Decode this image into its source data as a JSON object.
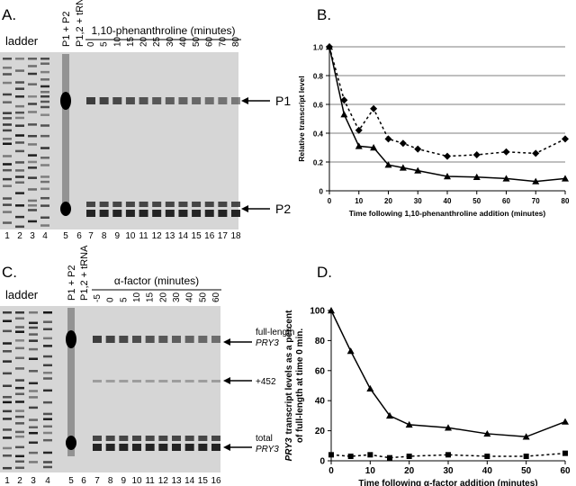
{
  "panels": {
    "a": {
      "label": "A.",
      "ladder": "ladder",
      "lane5": "P1 + P2",
      "lane6": "P1,2 + tRNA",
      "title": "1,10-phenanthroline (minutes)",
      "times": [
        "0",
        "5",
        "10",
        "15",
        "20",
        "25",
        "30",
        "40",
        "50",
        "60",
        "70",
        "80"
      ],
      "lanes": [
        1,
        2,
        3,
        4,
        5,
        6,
        7,
        8,
        9,
        10,
        11,
        12,
        13,
        14,
        15,
        16,
        17,
        18
      ],
      "band1": "P1",
      "band2": "P2"
    },
    "c": {
      "label": "C.",
      "ladder": "ladder",
      "lane5": "P1 + P2",
      "lane6": "P1,2 + tRNA",
      "title": "α-factor (minutes)",
      "times": [
        "-5",
        "0",
        "5",
        "10",
        "15",
        "20",
        "30",
        "40",
        "50",
        "60"
      ],
      "lanes": [
        1,
        2,
        3,
        4,
        5,
        6,
        7,
        8,
        9,
        10,
        11,
        12,
        13,
        14,
        15,
        16
      ],
      "band1": [
        "full-length",
        "PRY3"
      ],
      "band2": "+452",
      "band3": [
        "total",
        "PRY3"
      ]
    }
  },
  "chart_data": [
    {
      "type": "line",
      "panel": "B.",
      "x_label": "Time following 1,10-phenanthroline addition (minutes)",
      "y_label": [
        "Relative transcript level"
      ],
      "x": [
        0,
        5,
        10,
        15,
        20,
        25,
        30,
        40,
        50,
        60,
        70,
        80
      ],
      "xlim": [
        0,
        80
      ],
      "xticks": [
        0,
        10,
        20,
        30,
        40,
        50,
        60,
        70,
        80
      ],
      "ylim": [
        0,
        1
      ],
      "yticks": [
        0,
        0.2,
        0.4,
        0.6,
        0.8,
        {
          "value": 1,
          "label": "1.0"
        }
      ],
      "grid": true,
      "series": [
        {
          "color": "#000000",
          "marker": "triangle",
          "dashed": false,
          "values": [
            1.0,
            0.53,
            0.31,
            0.3,
            0.18,
            0.16,
            0.14,
            0.1,
            0.095,
            0.085,
            0.065,
            0.085
          ]
        },
        {
          "color": "#000000",
          "marker": "diamond",
          "dashed": true,
          "values": [
            1.0,
            0.63,
            0.42,
            0.57,
            0.36,
            0.33,
            0.29,
            0.24,
            0.25,
            0.27,
            0.26,
            0.36
          ]
        }
      ]
    },
    {
      "type": "line",
      "panel": "D.",
      "x_label": "Time following α-factor addition (minutes)",
      "y_label": [
        "PRY3",
        "transcript levels as a percent",
        "of full-length at time 0 min."
      ],
      "x": [
        0,
        5,
        10,
        15,
        20,
        30,
        40,
        50,
        60
      ],
      "xlim": [
        0,
        60
      ],
      "xticks": [
        0,
        10,
        20,
        30,
        40,
        50,
        60
      ],
      "ylim": [
        0,
        100
      ],
      "yticks": [
        0,
        20,
        40,
        60,
        80,
        100
      ],
      "grid": false,
      "series": [
        {
          "color": "#000000",
          "marker": "triangle",
          "dashed": false,
          "values": [
            100,
            73,
            48,
            30,
            24,
            22,
            18,
            16,
            26
          ]
        },
        {
          "color": "#000000",
          "marker": "square",
          "dashed": true,
          "values": [
            4,
            3,
            4,
            2,
            3,
            4,
            3,
            3,
            5
          ]
        }
      ]
    }
  ]
}
